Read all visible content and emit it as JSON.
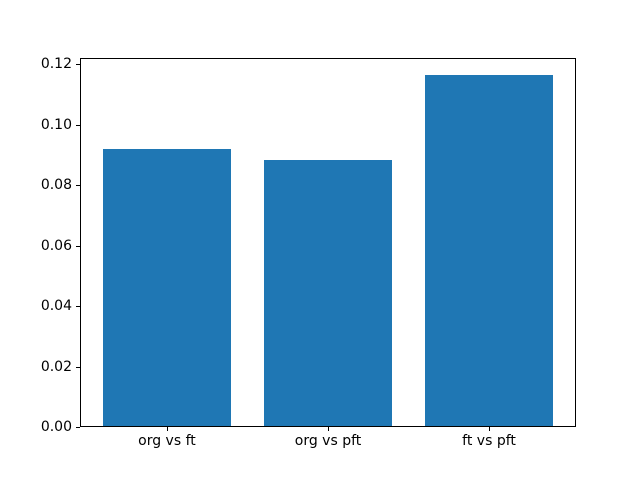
{
  "chart_data": {
    "type": "bar",
    "title": "",
    "xlabel": "",
    "ylabel": "",
    "categories": [
      "org vs ft",
      "org vs pft",
      "ft vs pft"
    ],
    "values": [
      0.0917,
      0.0881,
      0.1162
    ],
    "bar_color": "#1f77b4",
    "bar_width_fraction": 0.8,
    "xlim": [
      -0.54,
      2.54
    ],
    "ylim": [
      0,
      0.1221
    ],
    "yticks": [
      0,
      0.02,
      0.04,
      0.06,
      0.08,
      0.1,
      0.12
    ],
    "ytick_labels": [
      "0.00",
      "0.02",
      "0.04",
      "0.06",
      "0.08",
      "0.10",
      "0.12"
    ],
    "grid": false,
    "legend": "none",
    "spine_color": "#000000",
    "tick_color": "#000000",
    "text_color": "#000000",
    "background_color": "#ffffff"
  }
}
